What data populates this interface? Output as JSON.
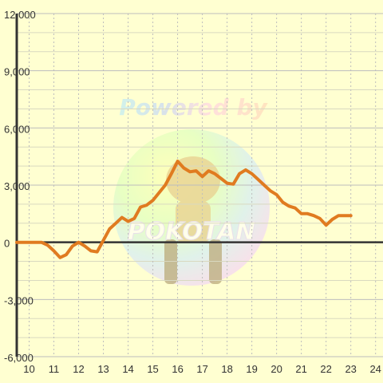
{
  "watermark": {
    "text": "Powered by",
    "badge_text": "POKOTAN"
  },
  "chart_data": {
    "type": "line",
    "title": "",
    "xlabel": "",
    "ylabel": "",
    "xlim": [
      9.5,
      24.3
    ],
    "ylim": [
      -6000,
      12000
    ],
    "x_ticks": [
      10,
      11,
      12,
      13,
      14,
      15,
      16,
      17,
      18,
      19,
      20,
      21,
      22,
      23,
      24
    ],
    "y_ticks": [
      -6000,
      -3000,
      0,
      3000,
      6000,
      9000,
      12000
    ],
    "y_tick_labels": [
      "-6,000",
      "-3,000",
      "0",
      "3,000",
      "6,000",
      "9,000",
      "12,000"
    ],
    "grid": true,
    "legend": "none",
    "colors": {
      "line": "#e07b20",
      "axis": "#333333",
      "grid": "#bdbdbd",
      "background": "#ffffd1"
    },
    "series": [
      {
        "x": [
          9.5,
          10.0,
          10.25,
          10.5,
          10.75,
          11.0,
          11.25,
          11.5,
          11.75,
          12.0,
          12.25,
          12.5,
          12.75,
          13.0,
          13.25,
          13.5,
          13.75,
          14.0,
          14.25,
          14.5,
          14.75,
          15.0,
          15.25,
          15.5,
          15.75,
          16.0,
          16.25,
          16.5,
          16.75,
          17.0,
          17.25,
          17.5,
          17.75,
          18.0,
          18.25,
          18.5,
          18.75,
          19.0,
          19.25,
          19.5,
          19.75,
          20.0,
          20.25,
          20.5,
          20.75,
          21.0,
          21.25,
          21.5,
          21.75,
          22.0,
          22.25,
          22.5,
          22.75,
          23.0
        ],
        "y": [
          0,
          0,
          0,
          0,
          -150,
          -450,
          -800,
          -650,
          -200,
          0,
          -200,
          -450,
          -500,
          100,
          700,
          1000,
          1300,
          1100,
          1250,
          1850,
          1950,
          2200,
          2600,
          3000,
          3600,
          4250,
          3900,
          3700,
          3750,
          3450,
          3750,
          3600,
          3350,
          3100,
          3050,
          3600,
          3800,
          3600,
          3300,
          3000,
          2700,
          2500,
          2100,
          1900,
          1800,
          1500,
          1500,
          1400,
          1250,
          900,
          1200,
          1400,
          1400,
          1400
        ]
      }
    ]
  }
}
